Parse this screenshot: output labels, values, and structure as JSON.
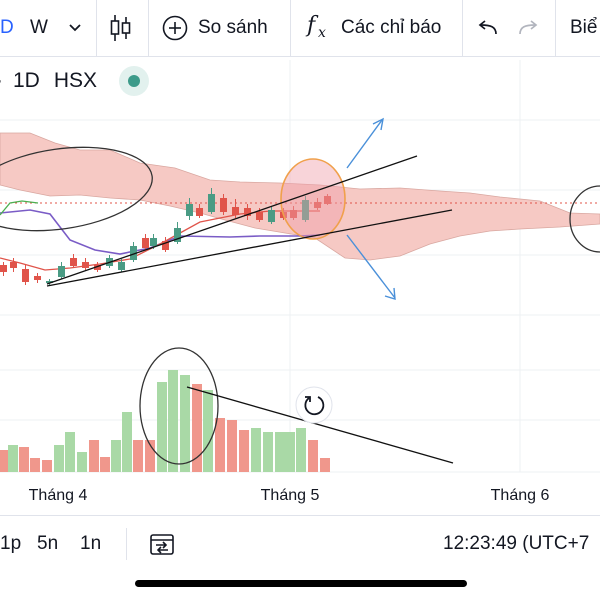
{
  "toolbar": {
    "interval_partial": "D",
    "interval_w": "W",
    "compare_label": "So sánh",
    "indicators_label": "Các chỉ báo",
    "chart_type_partial": "Biể",
    "fx_glyph": "f",
    "fx_sub": "x",
    "icons": [
      "chevron-down-icon",
      "candlestick-icon",
      "plus-circle-icon",
      "fx-icon",
      "undo-icon",
      "redo-icon"
    ]
  },
  "legend": {
    "interval": "1D",
    "exchange": "HSX",
    "status_color": "#3d9b8a"
  },
  "chart": {
    "x_axis_labels": [
      "Tháng 4",
      "Tháng 5",
      "Tháng 6"
    ],
    "colors": {
      "up": "#4a9b84",
      "down": "#e0544a",
      "vol_up": "#a9d9a6",
      "vol_down": "#f0978c",
      "cloud": "#f6c9c4"
    }
  },
  "bottombar": {
    "ranges": [
      "1p",
      "5n",
      "1n"
    ],
    "time": "12:23:49 (UTC+7"
  }
}
